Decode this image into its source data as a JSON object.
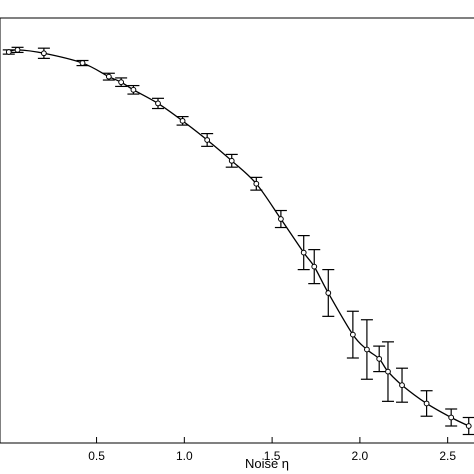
{
  "chart_data": {
    "type": "line",
    "xlabel": "Noise η",
    "ylabel": "",
    "x_ticks": [
      0.5,
      1.0,
      1.5,
      2.0,
      2.5
    ],
    "x_tick_labels": [
      "0.5",
      "1.0",
      "1.5",
      "2.0",
      "2.5"
    ],
    "xlim": [
      -0.05,
      2.65
    ],
    "ylim": [
      0.0,
      1.0
    ],
    "grid": false,
    "legend": "none",
    "series": [
      {
        "marker": "open-circle",
        "x": [
          0.0,
          0.05,
          0.2,
          0.42,
          0.57,
          0.64,
          0.71,
          0.85,
          0.99,
          1.13,
          1.27,
          1.41,
          1.55,
          1.68,
          1.74,
          1.82,
          1.96,
          2.04,
          2.11,
          2.16,
          2.24,
          2.38,
          2.52,
          2.62
        ],
        "y": [
          0.92,
          0.925,
          0.917,
          0.894,
          0.862,
          0.849,
          0.831,
          0.799,
          0.758,
          0.713,
          0.664,
          0.61,
          0.527,
          0.448,
          0.415,
          0.353,
          0.255,
          0.22,
          0.198,
          0.168,
          0.136,
          0.093,
          0.06,
          0.04
        ],
        "err": [
          0.005,
          0.006,
          0.012,
          0.006,
          0.008,
          0.01,
          0.01,
          0.012,
          0.01,
          0.015,
          0.015,
          0.015,
          0.02,
          0.04,
          0.04,
          0.055,
          0.055,
          0.07,
          0.03,
          0.07,
          0.04,
          0.03,
          0.02,
          0.02
        ]
      }
    ]
  }
}
